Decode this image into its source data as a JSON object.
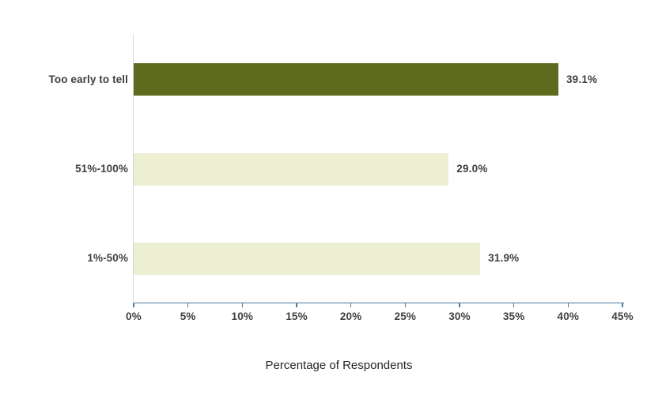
{
  "chart_data": {
    "type": "bar",
    "orientation": "horizontal",
    "title": "",
    "xlabel": "Percentage of Respondents",
    "ylabel": "",
    "categories": [
      "Too early to tell",
      "51%-100%",
      "1%-50%"
    ],
    "values": [
      39.1,
      29.0,
      31.9
    ],
    "value_labels": [
      "39.1%",
      "29.0%",
      "31.9%"
    ],
    "bar_colors": [
      "#5e6b1f",
      "#edefd3",
      "#edefd3"
    ],
    "xlim": [
      0,
      45
    ],
    "x_ticks": [
      {
        "value": 0,
        "label": "0%"
      },
      {
        "value": 5,
        "label": "5%"
      },
      {
        "value": 10,
        "label": "10%"
      },
      {
        "value": 15,
        "label": "15%"
      },
      {
        "value": 20,
        "label": "20%"
      },
      {
        "value": 25,
        "label": "25%"
      },
      {
        "value": 30,
        "label": "30%"
      },
      {
        "value": 35,
        "label": "35%"
      },
      {
        "value": 40,
        "label": "40%"
      },
      {
        "value": 45,
        "label": "45%"
      }
    ],
    "grid": false,
    "legend": false
  },
  "colors": {
    "bar_dark": "#5e6b1f",
    "bar_light": "#edefd3",
    "value_axis_line": "#4e7a9b",
    "category_axis_line": "#d9d9d9",
    "label_text": "#404040",
    "axis_title_text": "#262626",
    "background": "#ffffff"
  }
}
